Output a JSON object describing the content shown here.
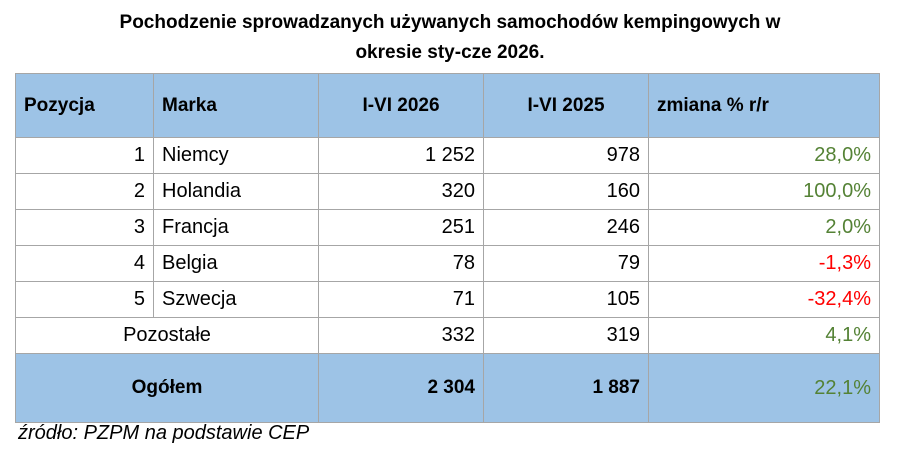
{
  "title_line1": "Pochodzenie sprowadzanych używanych samochodów kempingowych w",
  "title_line2": "okresie sty-cze 2026.",
  "headers": {
    "position": "Pozycja",
    "brand": "Marka",
    "current": "I-VI 2026",
    "previous": "I-VI 2025",
    "change": "zmiana % r/r"
  },
  "rows": [
    {
      "pos": "1",
      "name": "Niemcy",
      "current": "1 252",
      "previous": "978",
      "change": "28,0%",
      "sign": "pos"
    },
    {
      "pos": "2",
      "name": "Holandia",
      "current": "320",
      "previous": "160",
      "change": "100,0%",
      "sign": "pos"
    },
    {
      "pos": "3",
      "name": "Francja",
      "current": "251",
      "previous": "246",
      "change": "2,0%",
      "sign": "pos"
    },
    {
      "pos": "4",
      "name": "Belgia",
      "current": "78",
      "previous": "79",
      "change": "-1,3%",
      "sign": "neg"
    },
    {
      "pos": "5",
      "name": "Szwecja",
      "current": "71",
      "previous": "105",
      "change": "-32,4%",
      "sign": "neg"
    }
  ],
  "other": {
    "label": "Pozostałe",
    "current": "332",
    "previous": "319",
    "change": "4,1%"
  },
  "total": {
    "label": "Ogółem",
    "current": "2 304",
    "previous": "1 887",
    "change": "22,1%"
  },
  "source": "źródło: PZPM na podstawie CEP",
  "colors": {
    "header_bg": "#9dc3e6",
    "positive": "#548235",
    "negative": "#ff0000"
  }
}
